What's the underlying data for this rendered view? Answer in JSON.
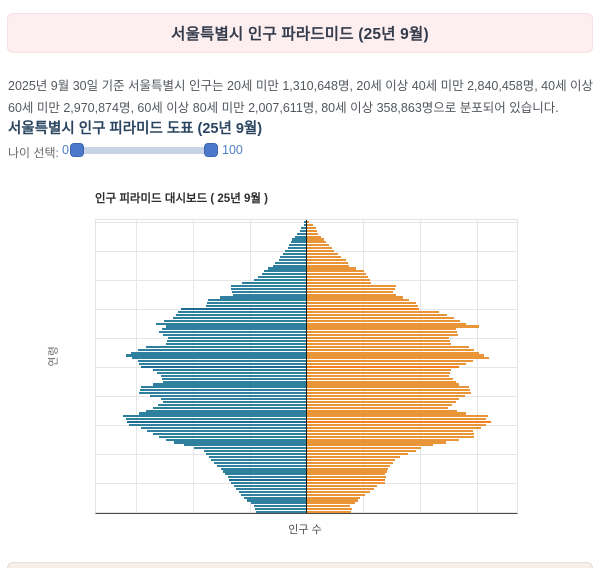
{
  "header": {
    "title": "서울특별시 인구 파라드미드 (25년 9월)",
    "background": "#fdeef0",
    "border_color": "#f5e0e3",
    "text_color": "#343c4c"
  },
  "summary": {
    "text": "2025년 9월 30일 기준 서울특별시 인구는 20세 미만 1,310,648명, 20세 이상 40세 미만 2,840,458명, 40세 이상 60세 미만 2,970,874명, 60세 이상 80세 미만 2,007,611명, 80세 이상 358,863명으로 분포되어 있습니다."
  },
  "section": {
    "title": "서울특별시 인구 피라미드 도표 (25년 9월)"
  },
  "age_slider": {
    "label": "나이 선택:",
    "min_label": "0",
    "max_label": "100",
    "min_value": 0,
    "max_value": 100,
    "handle_color": "#4b78c8",
    "track_color": "#c9d3e6",
    "value_text_color": "#4d7fc4"
  },
  "chart": {
    "title": "인구 피라미드 대시보드 ( 25년 9월 )",
    "xlabel": "인구 수",
    "ylabel": "연령",
    "left_color": "#2f7f9e",
    "right_color": "#ea9438",
    "left_highlight_color": "#1d6a93",
    "right_highlight_color": "#f57f1c",
    "grid_color": "#e6e6e6",
    "axis_color": "#4a4a4a",
    "center_line_color": "#1c1c1c",
    "highlight_ages": [
      11,
      31,
      50,
      70
    ]
  },
  "chart_data": {
    "type": "bar",
    "subtype": "population_pyramid_horizontal_diverging",
    "title": "인구 피라미드 대시보드 ( 25년 9월 )",
    "xlabel": "인구 수",
    "ylabel": "연령",
    "age_min": 0,
    "age_max": 100,
    "age_gridline_step": 10,
    "x_gridlines_per_side": 3,
    "unit": "percent of half-axis width (no numeric tick labels visible in image)",
    "legend": "none",
    "grid": true,
    "series": [
      {
        "name": "left",
        "color": "#2f7f9e",
        "values": [
          23.8,
          24.3,
          24.8,
          26.2,
          28.1,
          29.5,
          31.0,
          31.9,
          33.3,
          34.3,
          35.7,
          36.7,
          37.1,
          38.6,
          39.5,
          40.5,
          42.4,
          43.8,
          45.2,
          46.2,
          47.6,
          48.6,
          53.3,
          58.1,
          62.9,
          66.7,
          70.0,
          72.9,
          75.7,
          78.6,
          84.3,
          85.2,
          85.7,
          87.1,
          79.5,
          76.2,
          72.9,
          70.5,
          68.1,
          69.0,
          74.3,
          79.5,
          79.0,
          78.6,
          72.9,
          68.1,
          68.6,
          69.0,
          71.0,
          72.9,
          78.6,
          79.5,
          80.0,
          82.9,
          85.7,
          83.3,
          80.0,
          76.2,
          66.7,
          66.2,
          65.7,
          68.1,
          70.0,
          68.6,
          66.7,
          71.4,
          67.6,
          63.3,
          61.9,
          61.0,
          59.5,
          47.6,
          47.1,
          46.7,
          41.0,
          34.8,
          35.2,
          35.7,
          35.7,
          30.5,
          24.8,
          22.9,
          21.0,
          20.0,
          18.1,
          15.7,
          14.8,
          13.3,
          12.4,
          11.0,
          10.0,
          9.0,
          8.1,
          7.6,
          6.7,
          5.7,
          4.3,
          3.3,
          2.4,
          1.4,
          1.0
        ]
      },
      {
        "name": "right",
        "color": "#ea9438",
        "values": [
          21.0,
          21.4,
          20.5,
          22.9,
          24.3,
          25.2,
          27.6,
          30.0,
          31.9,
          33.3,
          37.1,
          37.1,
          37.6,
          37.1,
          38.1,
          38.6,
          39.5,
          41.0,
          41.9,
          44.3,
          48.1,
          51.9,
          54.3,
          60.0,
          66.2,
          72.4,
          79.5,
          79.5,
          79.0,
          82.9,
          85.2,
          87.6,
          85.2,
          86.2,
          75.7,
          71.4,
          67.1,
          69.0,
          71.0,
          72.4,
          75.2,
          78.1,
          77.6,
          77.1,
          72.4,
          71.0,
          69.5,
          67.6,
          68.1,
          68.6,
          72.4,
          75.7,
          79.0,
          86.7,
          84.3,
          81.9,
          79.5,
          77.1,
          68.6,
          68.1,
          67.6,
          71.9,
          71.4,
          71.0,
          81.9,
          75.7,
          72.9,
          70.0,
          66.7,
          62.9,
          53.3,
          52.9,
          51.9,
          48.6,
          45.7,
          42.4,
          41.0,
          41.9,
          42.4,
          30.5,
          30.0,
          29.0,
          28.1,
          27.1,
          23.3,
          20.0,
          19.5,
          18.6,
          16.2,
          14.8,
          12.9,
          11.9,
          10.5,
          9.5,
          8.1,
          6.7,
          5.7,
          4.8,
          4.3,
          3.3,
          1.4
        ]
      }
    ]
  },
  "footer_strip": {
    "visible": true
  }
}
